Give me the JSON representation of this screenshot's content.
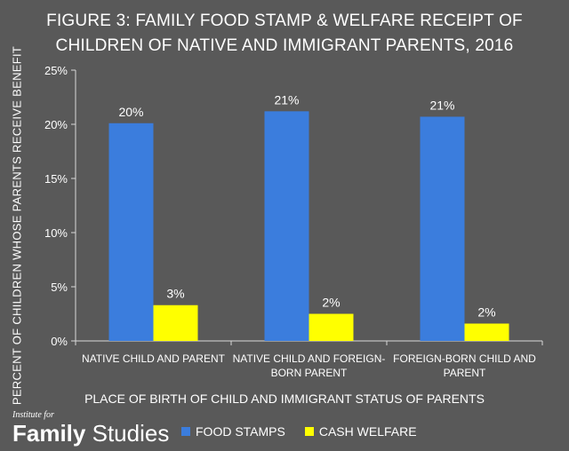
{
  "chart_data": {
    "type": "bar",
    "title_lines": [
      "FIGURE 3: FAMILY FOOD STAMP & WELFARE RECEIPT OF",
      "CHILDREN OF NATIVE AND IMMIGRANT PARENTS, 2016"
    ],
    "ylabel": "PERCENT OF CHILDREN WHOSE PARENTS RECEIVE BENEFIT",
    "xlabel": "PLACE OF BIRTH OF CHILD AND IMMIGRANT STATUS OF PARENTS",
    "ylim": [
      0,
      25
    ],
    "yticks": [
      0,
      5,
      10,
      15,
      20,
      25
    ],
    "ytick_labels": [
      "0%",
      "5%",
      "10%",
      "15%",
      "20%",
      "25%"
    ],
    "categories": [
      [
        "NATIVE CHILD AND PARENT"
      ],
      [
        "NATIVE CHILD AND FOREIGN-",
        "BORN PARENT"
      ],
      [
        "FOREIGN-BORN CHILD AND",
        "PARENT"
      ]
    ],
    "series": [
      {
        "name": "FOOD STAMPS",
        "color": "#3b7ddd",
        "values": [
          20.1,
          21.2,
          20.7
        ],
        "labels": [
          "20%",
          "21%",
          "21%"
        ]
      },
      {
        "name": "CASH WELFARE",
        "color": "#ffff00",
        "values": [
          3.3,
          2.5,
          1.6
        ],
        "labels": [
          "3%",
          "2%",
          "2%"
        ]
      }
    ],
    "legend_position": "bottom",
    "grid": false
  },
  "branding": {
    "small": "Institute for",
    "bold": "Family",
    "light": "Studies"
  }
}
